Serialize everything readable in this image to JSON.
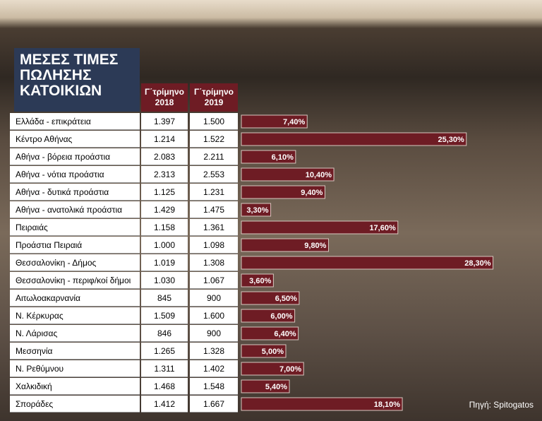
{
  "chart_data": {
    "type": "bar",
    "title": "ΜΕΣΕΣ ΤΙΜΕΣ ΠΩΛΗΣΗΣ ΚΑΤΟΙΚΙΩΝ",
    "columns": [
      "Γ΄τρίμηνο 2018",
      "Γ΄τρίμηνο 2019"
    ],
    "categories": [
      "Ελλάδα - επικράτεια",
      "Κέντρο Αθήνας",
      "Αθήνα - βόρεια προάστια",
      "Αθήνα - νότια προάστια",
      "Αθήνα - δυτικά προάστια",
      "Αθήνα - ανατολικά προάστια",
      "Πειραιάς",
      "Προάστια Πειραιά",
      "Θεσσαλονίκη - Δήμος",
      "Θεσσαλονίκη - περιφ/κοί δήμοι",
      "Αιτωλοακαρνανία",
      "Ν. Κέρκυρας",
      "Ν. Λάρισας",
      "Μεσσηνία",
      "Ν. Ρεθύμνου",
      "Χαλκιδική",
      "Σποράδες"
    ],
    "rows": [
      [
        "1.397",
        "1.500"
      ],
      [
        "1.214",
        "1.522"
      ],
      [
        "2.083",
        "2.211"
      ],
      [
        "2.313",
        "2.553"
      ],
      [
        "1.125",
        "1.231"
      ],
      [
        "1.429",
        "1.475"
      ],
      [
        "1.158",
        "1.361"
      ],
      [
        "1.000",
        "1.098"
      ],
      [
        "1.019",
        "1.308"
      ],
      [
        "1.030",
        "1.067"
      ],
      [
        "845",
        "900"
      ],
      [
        "1.509",
        "1.600"
      ],
      [
        "846",
        "900"
      ],
      [
        "1.265",
        "1.328"
      ],
      [
        "1.311",
        "1.402"
      ],
      [
        "1.468",
        "1.548"
      ],
      [
        "1.412",
        "1.667"
      ]
    ],
    "values": [
      7.4,
      25.3,
      6.1,
      10.4,
      9.4,
      3.3,
      17.6,
      9.8,
      28.3,
      3.6,
      6.5,
      6.0,
      6.4,
      5.0,
      7.0,
      5.4,
      18.1
    ],
    "value_labels": [
      "7,40%",
      "25,30%",
      "6,10%",
      "10,40%",
      "9,40%",
      "3,30%",
      "17,60%",
      "9,80%",
      "28,30%",
      "3,60%",
      "6,50%",
      "6,00%",
      "6,40%",
      "5,00%",
      "7,00%",
      "5,40%",
      "18,10%"
    ],
    "color": "#6e1c24",
    "xlim": [
      0,
      30
    ],
    "source": "Πηγή: Spitogatos"
  }
}
